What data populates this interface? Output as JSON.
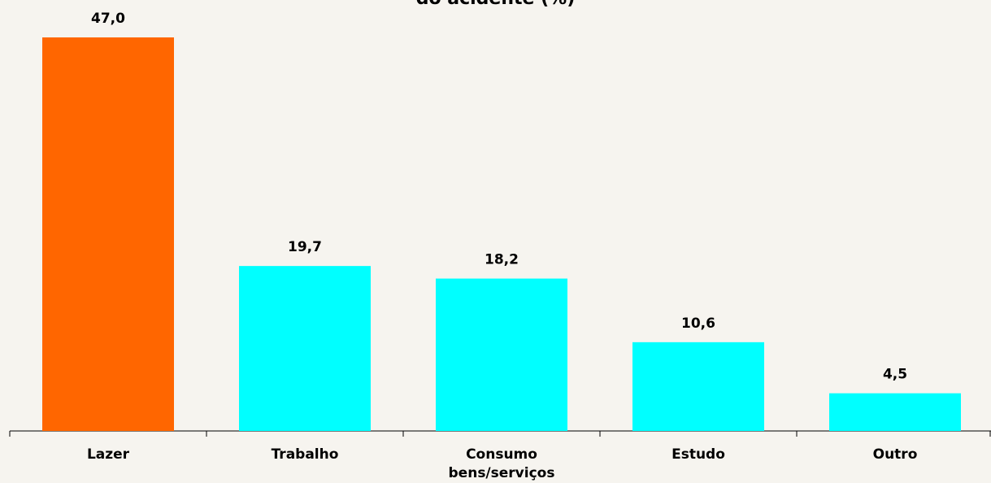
{
  "chart_data": {
    "type": "bar",
    "title": "do acidente (%)",
    "categories": [
      "Lazer",
      "Trabalho",
      "Consumo bens/serviços",
      "Estudo",
      "Outro"
    ],
    "values": [
      47.0,
      19.7,
      18.2,
      10.6,
      4.5
    ],
    "value_labels": [
      "47,0",
      "19,7",
      "18,2",
      "10,6",
      "4,5"
    ],
    "colors": [
      "#ff6600",
      "#00ffff",
      "#00ffff",
      "#00ffff",
      "#00ffff"
    ]
  }
}
